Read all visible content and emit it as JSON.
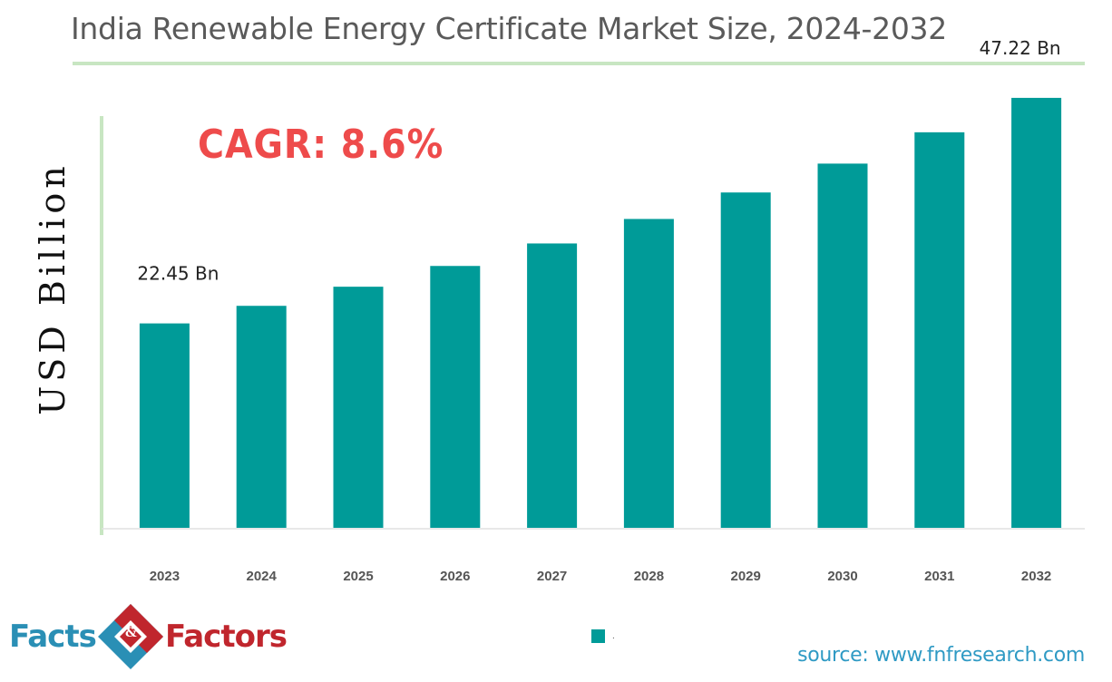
{
  "title": "India Renewable Energy Certificate Market Size, 2024-2032",
  "cagr": "CAGR: 8.6%",
  "chart_data": {
    "type": "bar",
    "categories": [
      "2023",
      "2024",
      "2025",
      "2026",
      "2027",
      "2028",
      "2029",
      "2030",
      "2031",
      "2032"
    ],
    "values": [
      22.45,
      24.38,
      26.48,
      28.76,
      31.23,
      33.92,
      36.83,
      40.0,
      43.44,
      47.22
    ],
    "data_labels": [
      {
        "category": "2023",
        "text": "22.45 Bn"
      },
      {
        "category": "2032",
        "text": "47.22 Bn"
      }
    ],
    "ylabel": "USD Billion",
    "ylim": [
      0,
      50
    ],
    "grid": false,
    "legend": "bottom",
    "bar_color": "#009b98"
  },
  "source": "source: www.fnfresearch.com",
  "logo": {
    "left": "Facts",
    "amp": "&",
    "right": "Factors"
  },
  "colors": {
    "accent_rule": "#c8e6c2",
    "bar": "#009b98",
    "cagr": "#ee4b4b",
    "source": "#2f9ac4"
  }
}
